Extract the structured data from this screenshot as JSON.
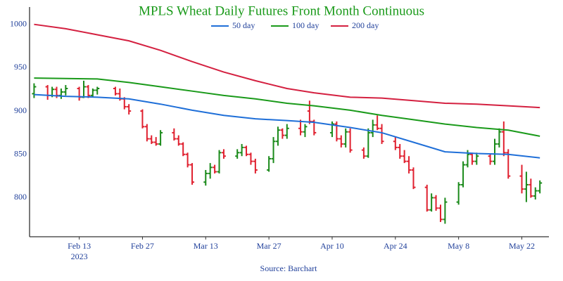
{
  "chart_data": {
    "type": "ohlc",
    "title": "MPLS Wheat Daily Futures Front Month Continuous",
    "source": "Source: Barchart",
    "x_year_label": "2023",
    "up_color": "#1a8a1a",
    "down_color": "#e0202f",
    "xlim": [
      "2023-02-02",
      "2023-05-28"
    ],
    "ylim": [
      755,
      1020
    ],
    "yticks": [
      800,
      850,
      900,
      950,
      1000
    ],
    "xticks": [
      {
        "value": "2023-02-13",
        "label": "Feb 13"
      },
      {
        "value": "2023-02-27",
        "label": "Feb 27"
      },
      {
        "value": "2023-03-13",
        "label": "Mar 13"
      },
      {
        "value": "2023-03-27",
        "label": "Mar 27"
      },
      {
        "value": "2023-04-10",
        "label": "Apr 10"
      },
      {
        "value": "2023-04-24",
        "label": "Apr 24"
      },
      {
        "value": "2023-05-08",
        "label": "May 8"
      },
      {
        "value": "2023-05-22",
        "label": "May 22"
      }
    ],
    "x": [
      "2023-02-03",
      "2023-02-06",
      "2023-02-07",
      "2023-02-08",
      "2023-02-09",
      "2023-02-10",
      "2023-02-13",
      "2023-02-14",
      "2023-02-15",
      "2023-02-16",
      "2023-02-17",
      "2023-02-21",
      "2023-02-22",
      "2023-02-23",
      "2023-02-24",
      "2023-02-27",
      "2023-02-28",
      "2023-03-01",
      "2023-03-02",
      "2023-03-03",
      "2023-03-06",
      "2023-03-07",
      "2023-03-08",
      "2023-03-09",
      "2023-03-10",
      "2023-03-13",
      "2023-03-14",
      "2023-03-15",
      "2023-03-16",
      "2023-03-17",
      "2023-03-20",
      "2023-03-21",
      "2023-03-22",
      "2023-03-23",
      "2023-03-24",
      "2023-03-27",
      "2023-03-28",
      "2023-03-29",
      "2023-03-30",
      "2023-03-31",
      "2023-04-03",
      "2023-04-04",
      "2023-04-05",
      "2023-04-06",
      "2023-04-10",
      "2023-04-11",
      "2023-04-12",
      "2023-04-13",
      "2023-04-14",
      "2023-04-17",
      "2023-04-18",
      "2023-04-19",
      "2023-04-20",
      "2023-04-21",
      "2023-04-24",
      "2023-04-25",
      "2023-04-26",
      "2023-04-27",
      "2023-04-28",
      "2023-05-01",
      "2023-05-02",
      "2023-05-03",
      "2023-05-04",
      "2023-05-05",
      "2023-05-08",
      "2023-05-09",
      "2023-05-10",
      "2023-05-11",
      "2023-05-12",
      "2023-05-15",
      "2023-05-16",
      "2023-05-17",
      "2023-05-18",
      "2023-05-19",
      "2023-05-22",
      "2023-05-23",
      "2023-05-24",
      "2023-05-25",
      "2023-05-26"
    ],
    "open": [
      920,
      928,
      918,
      925,
      918,
      922,
      926,
      916,
      928,
      918,
      924,
      926,
      920,
      914,
      905,
      900,
      882,
      868,
      864,
      862,
      875,
      868,
      862,
      850,
      838,
      818,
      828,
      835,
      830,
      852,
      848,
      852,
      858,
      850,
      842,
      832,
      845,
      865,
      878,
      872,
      880,
      876,
      900,
      888,
      875,
      885,
      868,
      862,
      876,
      855,
      848,
      875,
      884,
      880,
      865,
      858,
      848,
      842,
      832,
      812,
      786,
      800,
      788,
      775,
      795,
      815,
      838,
      850,
      842,
      848,
      842,
      862,
      876,
      852,
      825,
      810,
      815,
      802,
      808
    ],
    "high": [
      932,
      930,
      928,
      928,
      926,
      930,
      928,
      935,
      930,
      926,
      928,
      928,
      926,
      916,
      908,
      902,
      885,
      872,
      870,
      878,
      880,
      872,
      864,
      852,
      840,
      832,
      840,
      838,
      855,
      856,
      856,
      862,
      860,
      852,
      845,
      848,
      870,
      882,
      880,
      885,
      890,
      885,
      912,
      890,
      888,
      888,
      872,
      880,
      880,
      858,
      880,
      890,
      895,
      885,
      870,
      862,
      855,
      848,
      835,
      815,
      805,
      803,
      792,
      800,
      818,
      842,
      855,
      852,
      852,
      850,
      868,
      880,
      888,
      856,
      838,
      830,
      822,
      812,
      820
    ],
    "low": [
      915,
      913,
      916,
      915,
      914,
      918,
      912,
      915,
      915,
      916,
      919,
      918,
      912,
      902,
      896,
      880,
      865,
      862,
      860,
      860,
      866,
      860,
      848,
      835,
      815,
      814,
      822,
      828,
      828,
      845,
      845,
      848,
      848,
      838,
      828,
      830,
      840,
      860,
      868,
      868,
      872,
      870,
      885,
      872,
      870,
      865,
      858,
      858,
      852,
      845,
      846,
      870,
      878,
      862,
      855,
      845,
      840,
      828,
      810,
      784,
      784,
      785,
      772,
      770,
      792,
      812,
      835,
      838,
      838,
      838,
      838,
      858,
      848,
      822,
      805,
      795,
      800,
      798,
      805
    ],
    "close": [
      928,
      918,
      925,
      918,
      922,
      926,
      916,
      928,
      918,
      924,
      926,
      920,
      914,
      905,
      900,
      882,
      868,
      864,
      862,
      875,
      868,
      862,
      850,
      838,
      818,
      828,
      835,
      830,
      852,
      848,
      852,
      858,
      850,
      842,
      832,
      845,
      865,
      878,
      872,
      880,
      876,
      882,
      888,
      875,
      885,
      868,
      862,
      876,
      855,
      848,
      875,
      884,
      880,
      865,
      858,
      848,
      842,
      832,
      812,
      786,
      800,
      788,
      775,
      795,
      815,
      838,
      850,
      842,
      848,
      842,
      862,
      876,
      852,
      825,
      810,
      815,
      802,
      808,
      817
    ],
    "lines": [
      {
        "name": "50 day",
        "color": "#1f6fd8",
        "x": [
          "2023-02-03",
          "2023-02-10",
          "2023-02-17",
          "2023-02-24",
          "2023-03-03",
          "2023-03-10",
          "2023-03-17",
          "2023-03-24",
          "2023-03-31",
          "2023-04-06",
          "2023-04-14",
          "2023-04-21",
          "2023-04-28",
          "2023-05-05",
          "2023-05-12",
          "2023-05-19",
          "2023-05-26"
        ],
        "values": [
          919,
          917,
          916,
          914,
          908,
          901,
          895,
          891,
          889,
          887,
          881,
          875,
          864,
          853,
          851,
          850,
          846
        ]
      },
      {
        "name": "100 day",
        "color": "#1a9a1a",
        "x": [
          "2023-02-03",
          "2023-02-10",
          "2023-02-17",
          "2023-02-24",
          "2023-03-03",
          "2023-03-10",
          "2023-03-17",
          "2023-03-24",
          "2023-03-31",
          "2023-04-06",
          "2023-04-14",
          "2023-04-21",
          "2023-04-28",
          "2023-05-05",
          "2023-05-12",
          "2023-05-19",
          "2023-05-26"
        ],
        "values": [
          938,
          937.5,
          937,
          933,
          928,
          923,
          918,
          914,
          909,
          906,
          901,
          895,
          890,
          885,
          881,
          878,
          871
        ]
      },
      {
        "name": "200 day",
        "color": "#d42040",
        "x": [
          "2023-02-03",
          "2023-02-10",
          "2023-02-17",
          "2023-02-24",
          "2023-03-03",
          "2023-03-10",
          "2023-03-17",
          "2023-03-24",
          "2023-03-31",
          "2023-04-06",
          "2023-04-14",
          "2023-04-21",
          "2023-04-28",
          "2023-05-05",
          "2023-05-12",
          "2023-05-19",
          "2023-05-26"
        ],
        "values": [
          1000,
          995,
          988,
          981,
          970,
          957,
          945,
          935,
          926,
          921,
          916,
          915,
          912,
          909,
          908,
          906,
          904
        ]
      }
    ]
  }
}
